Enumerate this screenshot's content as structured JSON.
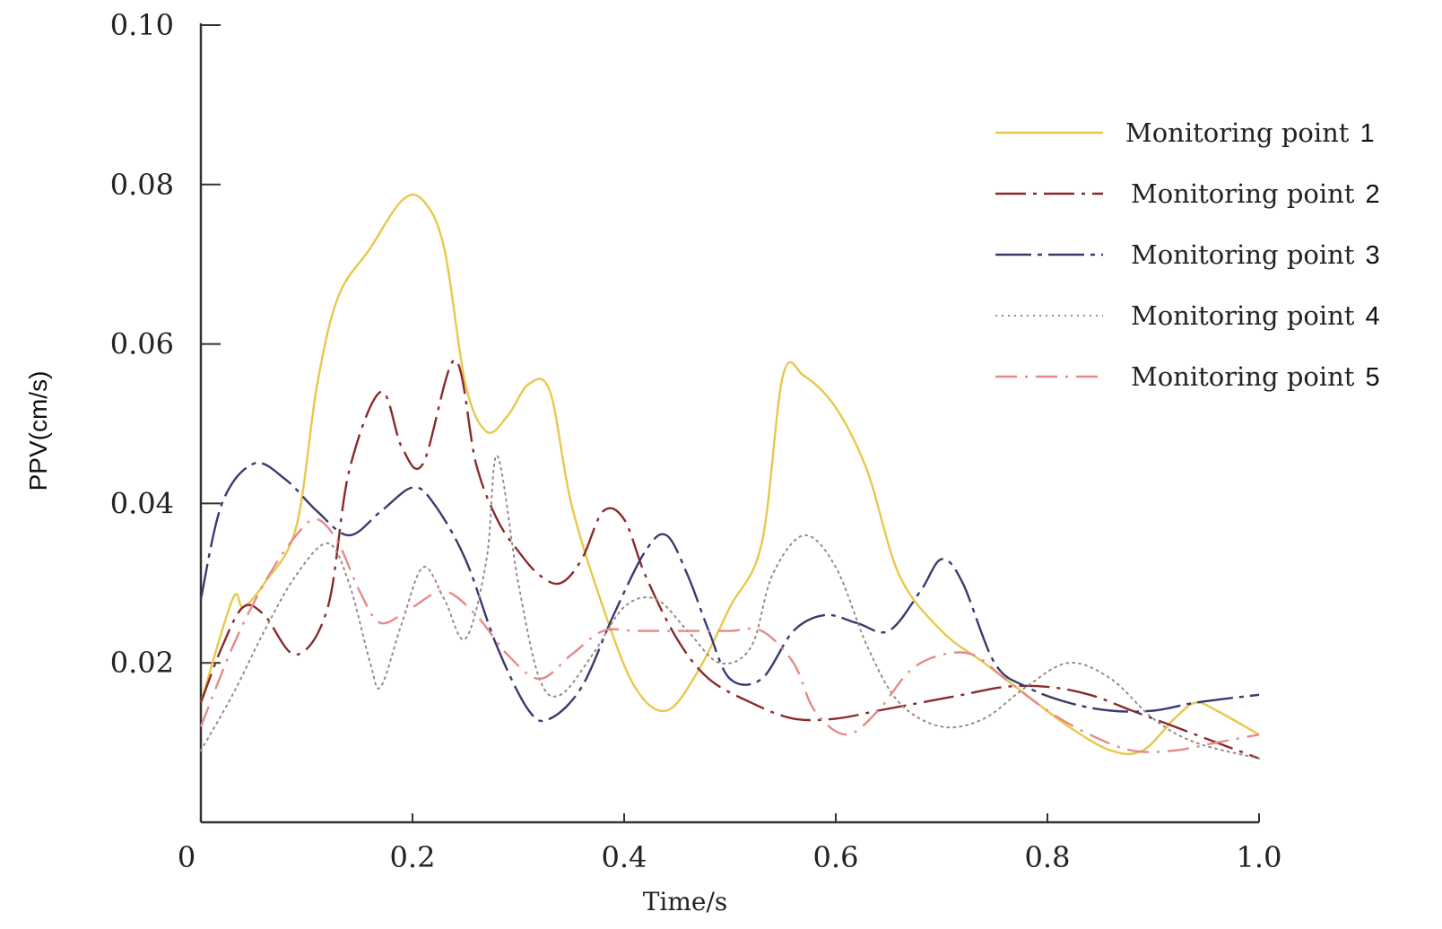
{
  "chart_data": {
    "type": "line",
    "title": "",
    "xlabel": "Time/s",
    "ylabel": "PPV(cm/s)",
    "xlim": [
      0,
      1.0
    ],
    "ylim": [
      0,
      0.1
    ],
    "x_ticks": [
      0,
      0.2,
      0.4,
      0.6,
      0.8,
      1.0
    ],
    "x_tick_labels": [
      "0",
      "0.2",
      "0.4",
      "0.6",
      "0.8",
      "1.0"
    ],
    "y_ticks": [
      0.02,
      0.04,
      0.06,
      0.08,
      0.1
    ],
    "y_tick_labels": [
      "0.02",
      "0.04",
      "0.06",
      "0.08",
      "0.10"
    ],
    "legend_position": "top-right",
    "grid": false,
    "series": [
      {
        "name": "Monitoring point",
        "num": "1",
        "color": "#e8c84a",
        "style": "solid",
        "x": [
          0,
          0.03,
          0.04,
          0.06,
          0.09,
          0.11,
          0.13,
          0.16,
          0.19,
          0.21,
          0.23,
          0.25,
          0.27,
          0.29,
          0.31,
          0.33,
          0.35,
          0.38,
          0.41,
          0.44,
          0.47,
          0.5,
          0.53,
          0.55,
          0.57,
          0.6,
          0.63,
          0.66,
          0.7,
          0.74,
          0.78,
          0.82,
          0.86,
          0.89,
          0.92,
          0.94,
          0.96,
          1.0
        ],
        "y": [
          0.015,
          0.028,
          0.027,
          0.03,
          0.037,
          0.055,
          0.066,
          0.072,
          0.078,
          0.078,
          0.072,
          0.055,
          0.049,
          0.051,
          0.055,
          0.054,
          0.04,
          0.027,
          0.017,
          0.014,
          0.019,
          0.027,
          0.035,
          0.056,
          0.056,
          0.052,
          0.044,
          0.031,
          0.024,
          0.02,
          0.016,
          0.012,
          0.009,
          0.009,
          0.013,
          0.015,
          0.014,
          0.011
        ]
      },
      {
        "name": "Monitoring point",
        "num": "2",
        "color": "#8b2a2a",
        "style": "dashdot",
        "x": [
          0,
          0.02,
          0.04,
          0.06,
          0.09,
          0.12,
          0.14,
          0.17,
          0.19,
          0.21,
          0.24,
          0.26,
          0.28,
          0.3,
          0.32,
          0.34,
          0.36,
          0.38,
          0.4,
          0.42,
          0.45,
          0.48,
          0.52,
          0.56,
          0.6,
          0.64,
          0.68,
          0.72,
          0.76,
          0.8,
          0.84,
          0.88,
          0.92,
          0.96,
          1.0
        ],
        "y": [
          0.015,
          0.022,
          0.027,
          0.026,
          0.021,
          0.027,
          0.044,
          0.054,
          0.047,
          0.045,
          0.058,
          0.045,
          0.038,
          0.034,
          0.031,
          0.03,
          0.033,
          0.039,
          0.038,
          0.031,
          0.023,
          0.018,
          0.015,
          0.013,
          0.013,
          0.014,
          0.015,
          0.016,
          0.017,
          0.017,
          0.016,
          0.014,
          0.012,
          0.01,
          0.008
        ]
      },
      {
        "name": "Monitoring point",
        "num": "3",
        "color": "#3a3a6e",
        "style": "longdash",
        "x": [
          0,
          0.02,
          0.05,
          0.08,
          0.11,
          0.14,
          0.17,
          0.2,
          0.22,
          0.25,
          0.28,
          0.31,
          0.33,
          0.36,
          0.39,
          0.42,
          0.44,
          0.46,
          0.48,
          0.5,
          0.53,
          0.56,
          0.59,
          0.62,
          0.65,
          0.68,
          0.7,
          0.72,
          0.75,
          0.78,
          0.82,
          0.86,
          0.9,
          0.94,
          1.0
        ],
        "y": [
          0.028,
          0.04,
          0.045,
          0.043,
          0.039,
          0.036,
          0.039,
          0.042,
          0.04,
          0.033,
          0.022,
          0.014,
          0.013,
          0.017,
          0.026,
          0.034,
          0.036,
          0.031,
          0.024,
          0.018,
          0.018,
          0.024,
          0.026,
          0.025,
          0.024,
          0.029,
          0.033,
          0.03,
          0.02,
          0.017,
          0.015,
          0.014,
          0.014,
          0.015,
          0.016
        ]
      },
      {
        "name": "Monitoring point",
        "num": "4",
        "color": "#9a8a8a",
        "style": "dotted",
        "x": [
          0,
          0.03,
          0.06,
          0.09,
          0.12,
          0.14,
          0.16,
          0.17,
          0.19,
          0.21,
          0.23,
          0.25,
          0.27,
          0.28,
          0.3,
          0.32,
          0.34,
          0.37,
          0.4,
          0.43,
          0.46,
          0.49,
          0.52,
          0.54,
          0.57,
          0.6,
          0.63,
          0.66,
          0.7,
          0.74,
          0.78,
          0.82,
          0.86,
          0.9,
          0.94,
          1.0
        ],
        "y": [
          0.009,
          0.016,
          0.024,
          0.031,
          0.035,
          0.03,
          0.02,
          0.017,
          0.025,
          0.032,
          0.028,
          0.023,
          0.033,
          0.046,
          0.03,
          0.018,
          0.016,
          0.021,
          0.027,
          0.028,
          0.024,
          0.02,
          0.022,
          0.031,
          0.036,
          0.032,
          0.022,
          0.015,
          0.012,
          0.013,
          0.017,
          0.02,
          0.018,
          0.013,
          0.01,
          0.008
        ]
      },
      {
        "name": "Monitoring point",
        "num": "5",
        "color": "#e58a8a",
        "style": "dashdotsparse",
        "x": [
          0,
          0.03,
          0.06,
          0.09,
          0.11,
          0.13,
          0.15,
          0.17,
          0.2,
          0.23,
          0.26,
          0.29,
          0.32,
          0.35,
          0.38,
          0.41,
          0.44,
          0.47,
          0.5,
          0.53,
          0.56,
          0.58,
          0.61,
          0.64,
          0.67,
          0.7,
          0.73,
          0.76,
          0.8,
          0.84,
          0.88,
          0.92,
          0.96,
          1.0
        ],
        "y": [
          0.012,
          0.022,
          0.03,
          0.036,
          0.038,
          0.035,
          0.029,
          0.025,
          0.027,
          0.029,
          0.026,
          0.021,
          0.018,
          0.021,
          0.024,
          0.024,
          0.024,
          0.024,
          0.024,
          0.024,
          0.02,
          0.014,
          0.011,
          0.014,
          0.019,
          0.021,
          0.021,
          0.018,
          0.014,
          0.011,
          0.009,
          0.009,
          0.01,
          0.011
        ]
      }
    ]
  }
}
